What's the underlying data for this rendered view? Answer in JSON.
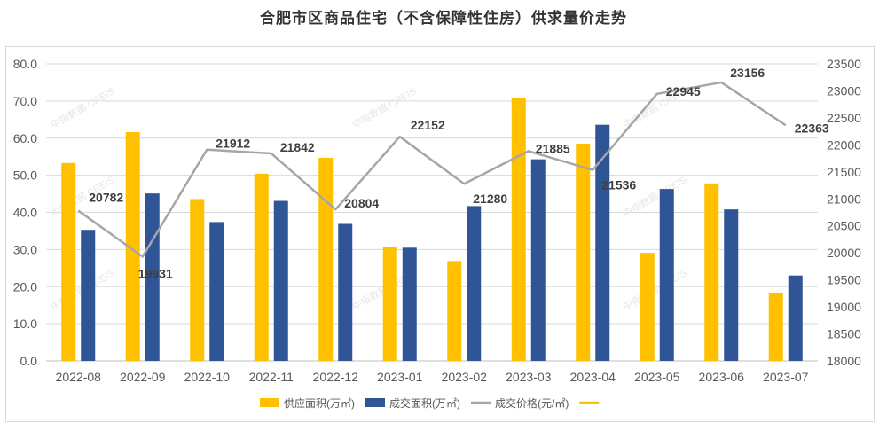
{
  "title": "合肥市区商品住宅（不含保障性住房）供求量价走势",
  "watermark": "中指数据 CREIS",
  "chart_data": {
    "type": "bar",
    "categories": [
      "2022-08",
      "2022-09",
      "2022-10",
      "2022-11",
      "2022-12",
      "2023-01",
      "2023-02",
      "2023-03",
      "2023-04",
      "2023-05",
      "2023-06",
      "2023-07"
    ],
    "series": [
      {
        "name": "供应面积(万㎡)",
        "type": "bar",
        "axis": "left",
        "color": "#FFC000",
        "values": [
          53.3,
          61.6,
          43.6,
          50.4,
          54.7,
          30.8,
          26.9,
          70.8,
          58.5,
          29.1,
          47.8,
          18.4
        ]
      },
      {
        "name": "成交面积(万㎡)",
        "type": "bar",
        "axis": "left",
        "color": "#2F5597",
        "values": [
          35.3,
          45.1,
          37.4,
          43.1,
          36.9,
          30.5,
          41.7,
          54.3,
          63.6,
          46.3,
          40.8,
          23.0
        ]
      },
      {
        "name": "成交价格(元/㎡)",
        "type": "line",
        "axis": "right",
        "color": "#A6A6A6",
        "values": [
          20782,
          19931,
          21912,
          21842,
          20804,
          22152,
          21280,
          21885,
          21536,
          22945,
          23156,
          22363
        ],
        "labels": [
          "20782",
          "19931",
          "21912",
          "21842",
          "20804",
          "22152",
          "21280",
          "21885",
          "21536",
          "22945",
          "23156",
          "22363"
        ]
      }
    ],
    "left_axis": {
      "min": 0,
      "max": 80,
      "step": 10,
      "tick_labels": [
        "0.0",
        "10.0",
        "20.0",
        "30.0",
        "40.0",
        "50.0",
        "60.0",
        "70.0",
        "80.0"
      ]
    },
    "right_axis": {
      "min": 18000,
      "max": 23500,
      "step": 500,
      "tick_labels": [
        "18000",
        "18500",
        "19000",
        "19500",
        "20000",
        "20500",
        "21000",
        "21500",
        "22000",
        "22500",
        "23000",
        "23500"
      ]
    },
    "grid": true,
    "legend_position": "bottom",
    "legend": [
      {
        "label": "供应面积(万㎡)",
        "kind": "bar",
        "color": "#FFC000"
      },
      {
        "label": "成交面积(万㎡)",
        "kind": "bar",
        "color": "#2F5597"
      },
      {
        "label": "成交价格(元/㎡)",
        "kind": "line",
        "color": "#A6A6A6"
      },
      {
        "label": "",
        "kind": "line",
        "color": "#FFC000"
      }
    ]
  }
}
